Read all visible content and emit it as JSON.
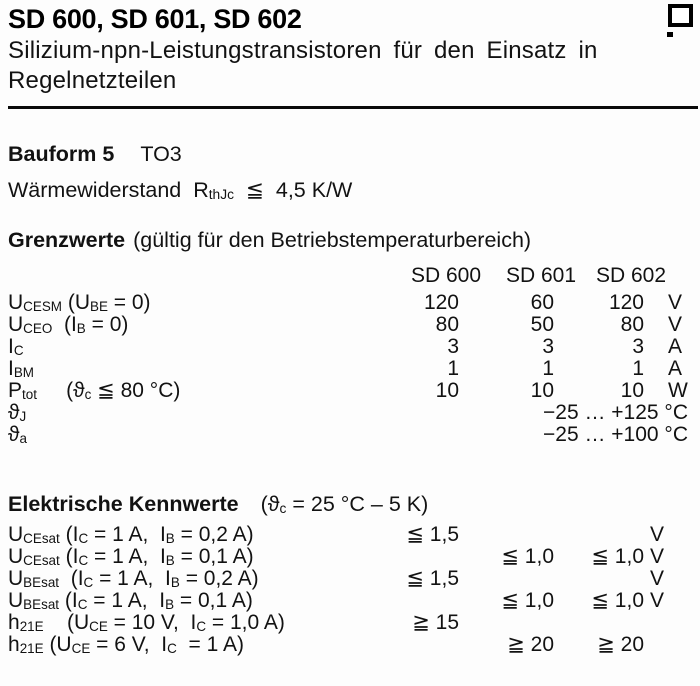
{
  "header": {
    "title": "SD 600, SD 601, SD 602",
    "subtitle_line1": "Silizium-npn-Leistungstransistoren für den Einsatz in",
    "subtitle_line2": "Regelnetzteilen"
  },
  "package": {
    "label": "Bauform 5",
    "value": "TO3"
  },
  "thermal": {
    "line": [
      [
        "Wärmewiderstand  R"
      ],
      [
        "thJc",
        "sub"
      ],
      [
        "  ≦  4,5 K/W"
      ]
    ]
  },
  "limits": {
    "heading": "Grenzwerte",
    "note": "(gültig für den Betriebstemperaturbereich)",
    "columns": [
      "SD 600",
      "SD 601",
      "SD 602"
    ],
    "rows": [
      {
        "label": [
          [
            "U"
          ],
          [
            "CESM",
            "sub"
          ],
          [
            " (U"
          ],
          [
            "BE",
            "sub"
          ],
          [
            " = 0)"
          ]
        ],
        "v1": "120",
        "v2": "60",
        "v3": "120",
        "unit": "V"
      },
      {
        "label": [
          [
            "U"
          ],
          [
            "CEO",
            "sub"
          ],
          [
            "  (I"
          ],
          [
            "B",
            "sub"
          ],
          [
            " = 0)"
          ]
        ],
        "v1": "80",
        "v2": "50",
        "v3": "80",
        "unit": "V"
      },
      {
        "label": [
          [
            "I"
          ],
          [
            "C",
            "sub"
          ]
        ],
        "v1": "3",
        "v2": "3",
        "v3": "3",
        "unit": "A"
      },
      {
        "label": [
          [
            "I"
          ],
          [
            "BM",
            "sub"
          ]
        ],
        "v1": "1",
        "v2": "1",
        "v3": "1",
        "unit": "A"
      },
      {
        "label": [
          [
            "P"
          ],
          [
            "tot",
            "sub"
          ],
          [
            "     (ϑ"
          ],
          [
            "c",
            "sub"
          ],
          [
            " ≦ 80 °C)"
          ]
        ],
        "v1": "10",
        "v2": "10",
        "v3": "10",
        "unit": "W"
      },
      {
        "label": [
          [
            "ϑ"
          ],
          [
            "J",
            "sub"
          ]
        ],
        "range": "−25 … +125 °C"
      },
      {
        "label": [
          [
            "ϑ"
          ],
          [
            "a",
            "sub"
          ]
        ],
        "range": "−25 … +100 °C"
      }
    ]
  },
  "electrical": {
    "heading": "Elektrische Kennwerte",
    "condition": [
      [
        "(ϑ"
      ],
      [
        "c",
        "sub"
      ],
      [
        " = 25 °C – 5 K)"
      ]
    ],
    "rows": [
      {
        "label": [
          [
            "U"
          ],
          [
            "CEsat",
            "sub"
          ],
          [
            " (I"
          ],
          [
            "C",
            "sub"
          ],
          [
            " = 1 A,  I"
          ],
          [
            "B",
            "sub"
          ],
          [
            " = 0,2 A)"
          ]
        ],
        "v1": "≦ 1,5",
        "v2": "",
        "v3": "",
        "unit": "V"
      },
      {
        "label": [
          [
            "U"
          ],
          [
            "CEsat",
            "sub"
          ],
          [
            " (I"
          ],
          [
            "C",
            "sub"
          ],
          [
            " = 1 A,  I"
          ],
          [
            "B",
            "sub"
          ],
          [
            " = 0,1 A)"
          ]
        ],
        "v1": "",
        "v2": "≦ 1,0",
        "v3": "≦ 1,0",
        "unit": "V"
      },
      {
        "label": [
          [
            "U"
          ],
          [
            "BEsat",
            "sub"
          ],
          [
            "  (I"
          ],
          [
            "C",
            "sub"
          ],
          [
            " = 1 A,  I"
          ],
          [
            "B",
            "sub"
          ],
          [
            " = 0,2 A)"
          ]
        ],
        "v1": "≦ 1,5",
        "v2": "",
        "v3": "",
        "unit": "V"
      },
      {
        "label": [
          [
            "U"
          ],
          [
            "BEsat",
            "sub"
          ],
          [
            " (I"
          ],
          [
            "C",
            "sub"
          ],
          [
            " = 1 A,  I"
          ],
          [
            "B",
            "sub"
          ],
          [
            " = 0,1 A)"
          ]
        ],
        "v1": "",
        "v2": "≦ 1,0",
        "v3": "≦ 1,0",
        "unit": "V"
      },
      {
        "label": [
          [
            "h"
          ],
          [
            "21E",
            "sub"
          ],
          [
            "    (U"
          ],
          [
            "CE",
            "sub"
          ],
          [
            " = 10 V,  I"
          ],
          [
            "C",
            "sub"
          ],
          [
            " = 1,0 A)"
          ]
        ],
        "v1": "≧ 15",
        "v2": "",
        "v3": "",
        "unit": ""
      },
      {
        "label": [
          [
            "h"
          ],
          [
            "21E",
            "sub"
          ],
          [
            " (U"
          ],
          [
            "CE",
            "sub"
          ],
          [
            " = 6 V,  I"
          ],
          [
            "C",
            "sub"
          ],
          [
            "  = 1 A)"
          ]
        ],
        "v1": "",
        "v2": "≧ 20",
        "v3": "≧ 20",
        "unit": ""
      }
    ]
  }
}
